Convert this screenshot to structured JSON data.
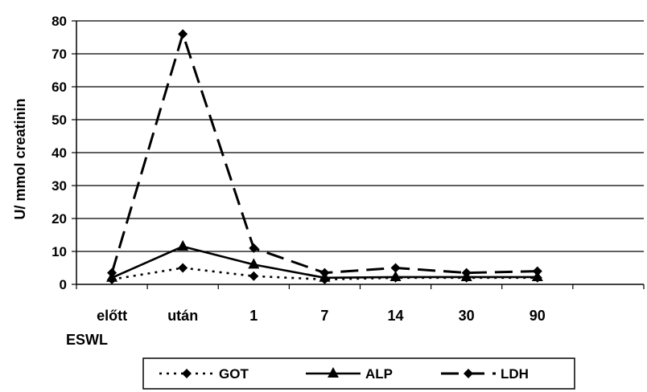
{
  "chart_data": {
    "type": "line",
    "categories": [
      "előtt",
      "után",
      "1",
      "7",
      "14",
      "30",
      "90"
    ],
    "x_extra_label": "ESWL",
    "ylabel": "U/ mmol creatinin",
    "ylim": [
      0,
      80
    ],
    "yticks": [
      "0",
      "10",
      "20",
      "30",
      "40",
      "50",
      "60",
      "70",
      "80"
    ],
    "grid": true,
    "legend_position": "bottom",
    "series": [
      {
        "name": "GOT",
        "values": [
          1.5,
          5,
          2.5,
          1.5,
          2,
          2,
          2
        ],
        "line": "dotted",
        "marker": "diamond"
      },
      {
        "name": "ALP",
        "values": [
          2,
          11.5,
          6,
          2,
          2.2,
          2.2,
          2.2
        ],
        "line": "solid",
        "marker": "triangle"
      },
      {
        "name": "LDH",
        "values": [
          3.5,
          76,
          11,
          3.5,
          5,
          3.5,
          4
        ],
        "line": "dashed",
        "marker": "diamond"
      }
    ]
  }
}
